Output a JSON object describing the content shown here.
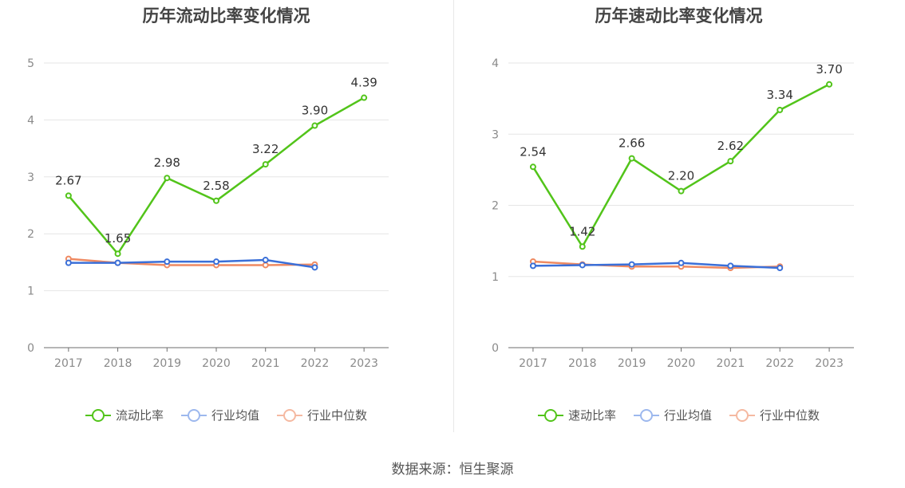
{
  "source": "数据来源：恒生聚源",
  "colors": {
    "company": "#52c41a",
    "industry_avg": "#3a6fd8",
    "industry_median": "#ef8a62"
  },
  "chart_data": [
    {
      "type": "line",
      "title": "历年流动比率变化情况",
      "categories": [
        "2017",
        "2018",
        "2019",
        "2020",
        "2021",
        "2022",
        "2023"
      ],
      "ylim": [
        0,
        5
      ],
      "yticks": [
        "0",
        "1",
        "2",
        "3",
        "4",
        "5"
      ],
      "grid": true,
      "legend_position": "bottom",
      "series": [
        {
          "name": "流动比率",
          "values": [
            2.67,
            1.65,
            2.98,
            2.58,
            3.22,
            3.9,
            4.39
          ],
          "labels": [
            "2.67",
            "1.65",
            "2.98",
            "2.58",
            "3.22",
            "3.90",
            "4.39"
          ]
        },
        {
          "name": "行业均值",
          "values": [
            1.49,
            1.49,
            1.51,
            1.51,
            1.54,
            1.41,
            null
          ]
        },
        {
          "name": "行业中位数",
          "values": [
            1.56,
            1.49,
            1.45,
            1.45,
            1.45,
            1.46,
            null
          ]
        }
      ]
    },
    {
      "type": "line",
      "title": "历年速动比率变化情况",
      "categories": [
        "2017",
        "2018",
        "2019",
        "2020",
        "2021",
        "2022",
        "2023"
      ],
      "ylim": [
        0,
        4
      ],
      "yticks": [
        "0",
        "1",
        "2",
        "3",
        "4"
      ],
      "grid": true,
      "legend_position": "bottom",
      "series": [
        {
          "name": "速动比率",
          "values": [
            2.54,
            1.42,
            2.66,
            2.2,
            2.62,
            3.34,
            3.7
          ],
          "labels": [
            "2.54",
            "1.42",
            "2.66",
            "2.20",
            "2.62",
            "3.34",
            "3.70"
          ]
        },
        {
          "name": "行业均值",
          "values": [
            1.15,
            1.16,
            1.17,
            1.19,
            1.15,
            1.12,
            null
          ]
        },
        {
          "name": "行业中位数",
          "values": [
            1.21,
            1.17,
            1.14,
            1.14,
            1.12,
            1.14,
            null
          ]
        }
      ]
    }
  ]
}
